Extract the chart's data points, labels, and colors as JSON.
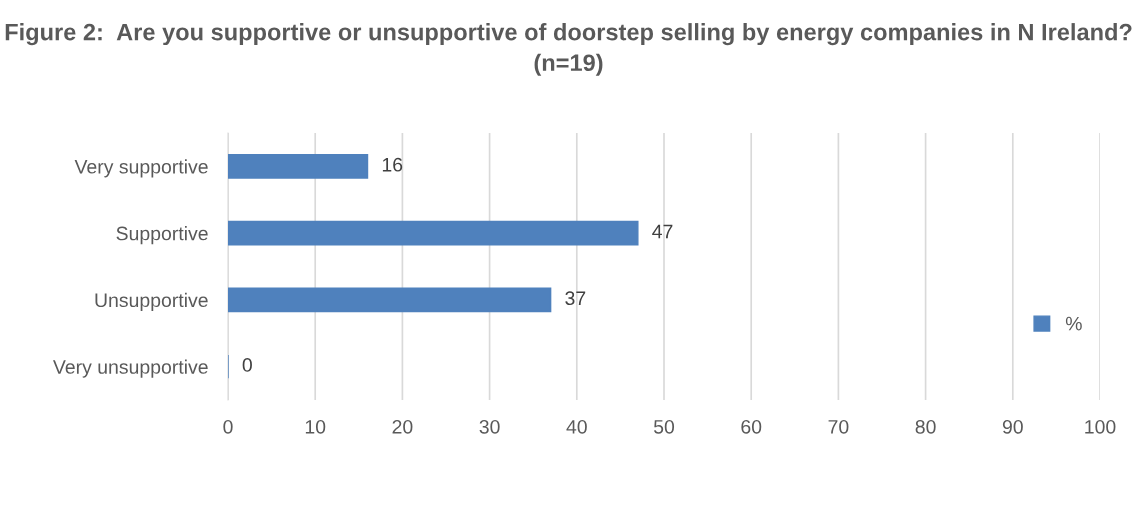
{
  "chart_data": {
    "type": "bar",
    "orientation": "horizontal",
    "title": "Figure 2:  Are you supportive or unsupportive of doorstep selling by energy companies in N Ireland? (n=19)",
    "categories": [
      "Very supportive",
      "Supportive",
      "Unsupportive",
      "Very unsupportive"
    ],
    "series": [
      {
        "name": "%",
        "color": "#4f81bd",
        "values": [
          16,
          47,
          37,
          0
        ]
      }
    ],
    "xlim": [
      0,
      100
    ],
    "xticks": [
      0,
      10,
      20,
      30,
      40,
      50,
      60,
      70,
      80,
      90,
      100
    ],
    "grid": "x",
    "legend": "right",
    "data_labels": true
  }
}
